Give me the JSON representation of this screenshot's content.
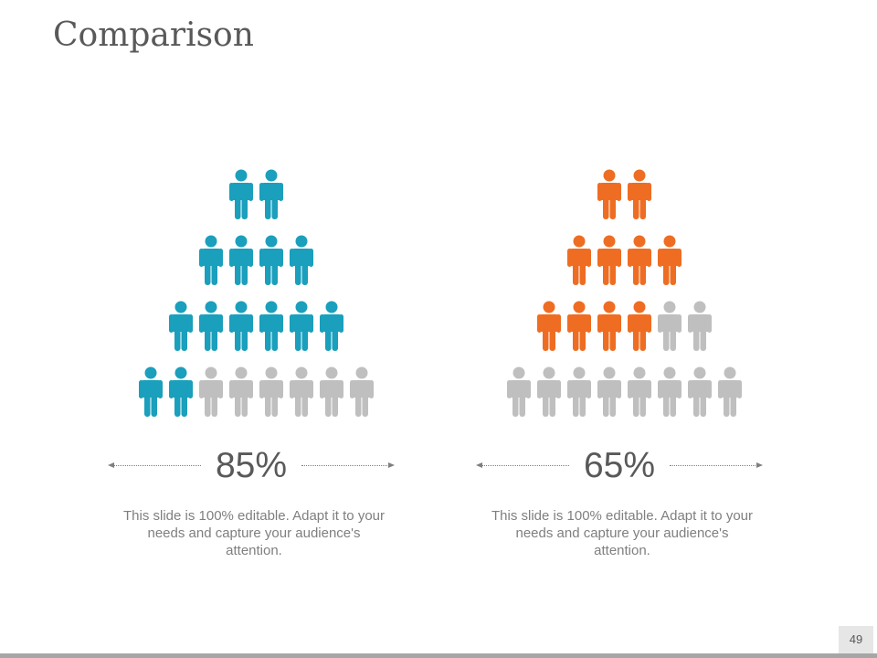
{
  "title": "Comparison",
  "colors": {
    "teal": "#1a9fbc",
    "orange": "#ee6d22",
    "gray": "#bfbfbf"
  },
  "panels": [
    {
      "percent_label": "85%",
      "accent": "#1a9fbc",
      "rows": [
        {
          "total": 2,
          "colored": 2
        },
        {
          "total": 4,
          "colored": 4
        },
        {
          "total": 6,
          "colored": 6
        },
        {
          "total": 8,
          "colored": 2
        }
      ],
      "description": "This slide is 100% editable. Adapt it to your needs and capture your audience's attention."
    },
    {
      "percent_label": "65%",
      "accent": "#ee6d22",
      "rows": [
        {
          "total": 2,
          "colored": 2
        },
        {
          "total": 4,
          "colored": 4
        },
        {
          "total": 6,
          "colored": 4
        },
        {
          "total": 8,
          "colored": 0
        }
      ],
      "description": "This slide is 100% editable. Adapt it to your needs and capture your audience's attention."
    }
  ],
  "page_number": "49"
}
